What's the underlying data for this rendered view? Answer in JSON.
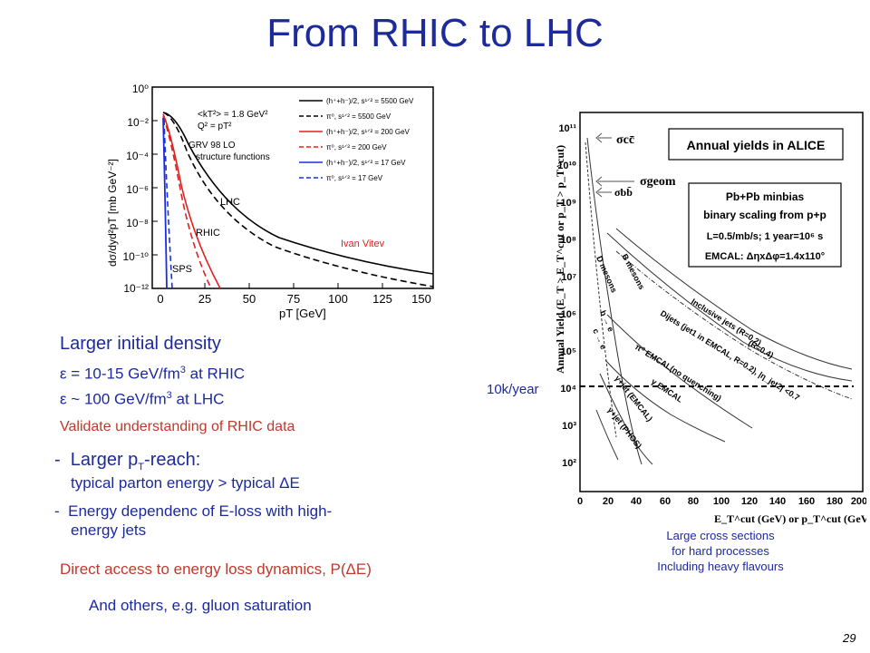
{
  "slide": {
    "title": "From RHIC to LHC",
    "page_number": "29"
  },
  "left_plot": {
    "ylabel": "dσ/dyd²pT [mb GeV⁻²]",
    "xlabel": "pT [GeV]",
    "x_ticks": [
      "0",
      "25",
      "50",
      "75",
      "100",
      "125",
      "150"
    ],
    "y_ticks": [
      "10⁰",
      "10⁻²",
      "10⁻⁴",
      "10⁻⁶",
      "10⁻⁸",
      "10⁻¹⁰",
      "10⁻¹²"
    ],
    "kt_note": "<kT²> = 1.8 GeV²",
    "q2_note": "Q² = pT²",
    "grv_note": "GRV 98 LO",
    "sf_note": "structure functions",
    "author": "Ivan Vitev",
    "label_lhc": "LHC",
    "label_rhic": "RHIC",
    "label_sps": "SPS",
    "legend": [
      {
        "text": "(h⁺+h⁻)/2, s¹ᐟ² = 5500 GeV",
        "color": "#000000",
        "dash": false
      },
      {
        "text": "π⁰, s¹ᐟ² = 5500 GeV",
        "color": "#000000",
        "dash": true
      },
      {
        "text": "(h⁺+h⁻)/2, s¹ᐟ² = 200 GeV",
        "color": "#e02020",
        "dash": false
      },
      {
        "text": "π⁰, s¹ᐟ² = 200 GeV",
        "color": "#e02020",
        "dash": true
      },
      {
        "text": "(h⁺+h⁻)/2, s¹ᐟ² = 17 GeV",
        "color": "#1a2ee0",
        "dash": false
      },
      {
        "text": "π⁰, s¹ᐟ² = 17 GeV",
        "color": "#1a2ee0",
        "dash": true
      }
    ]
  },
  "right_plot": {
    "ylabel": "Annual Yield (E_T > E_T^cut or p_T > p_T^cut)",
    "xlabel": "E_T^cut (GeV) or p_T^cut (GeV/c)",
    "x_ticks": [
      "0",
      "20",
      "40",
      "60",
      "80",
      "100",
      "120",
      "140",
      "160",
      "180",
      "200"
    ],
    "y_ticks": [
      "10²",
      "10³",
      "10⁴",
      "10⁵",
      "10⁶",
      "10⁷",
      "10⁸",
      "10⁹",
      "10¹⁰",
      "10¹¹"
    ],
    "box_title": "Annual yields in ALICE",
    "info": [
      "Pb+Pb minbias",
      "binary scaling from p+p",
      "L=0.5/mb/s; 1 year=10⁶ s",
      "EMCAL: ΔηxΔφ=1.4x110°"
    ],
    "sigma_cc": "σcc̄",
    "sigma_geom": "σgeom",
    "sigma_bb": "σbb̄",
    "curve_labels": {
      "b_mesons": "B mesons",
      "d_mesons": "D mesons",
      "b_e": "b → e",
      "c_e": "c → e",
      "inclusive": "Inclusive jets (R=0.2)",
      "r04": "(R=0.4)",
      "dijets": "Dijets (jet1 in EMCAL, R=0.2), |η_jet2| <0.7",
      "pi0": "π⁰ EMCAL(no quenching)",
      "gamma": "γ EMCAL",
      "gammajet_em": "γ+jet (EMCAL)",
      "gammajet_ph": "γ+jet (PHOS)"
    },
    "tenk_label": "10k/year"
  },
  "bullets": {
    "density_head": "Larger initial density",
    "eps1_pre": "ε = 10-15 GeV/fm",
    "eps1_sup": "3",
    "eps1_post": " at RHIC",
    "eps2_pre": "ε ~ 100 GeV/fm",
    "eps2_sup": "3",
    "eps2_post": " at LHC",
    "validate": "Validate understanding of RHIC data",
    "pt_dash": "-",
    "pt_pre": "Larger p",
    "pt_sub": "T",
    "pt_post": "-reach:",
    "parton": "typical parton energy > typical ΔE",
    "energy_dash": "-",
    "energy_line1": "Energy dependenc of E-loss with high-",
    "energy_line2": "energy jets",
    "direct": "Direct access to energy loss dynamics, P(ΔE)",
    "others": "And others, e.g. gluon saturation"
  },
  "caption": {
    "line1": "Large cross sections",
    "line2": "for hard processes",
    "line3": "Including heavy flavours"
  }
}
